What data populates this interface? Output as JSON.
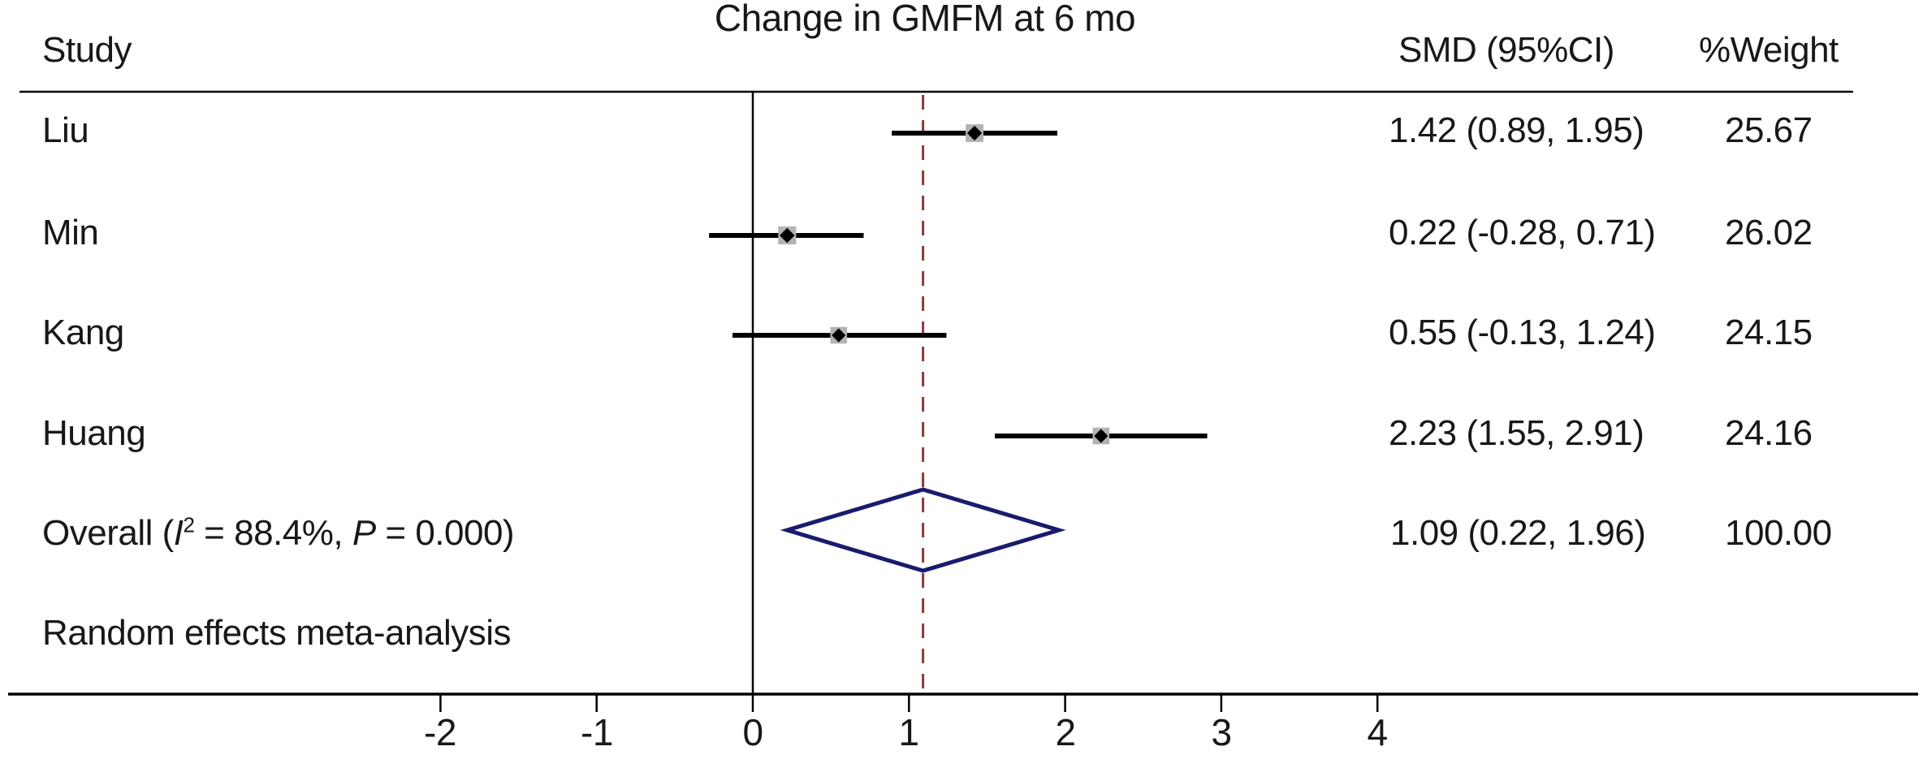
{
  "title": "Change in GMFM at 6 mo",
  "header": {
    "study": "Study",
    "smd_ci": "SMD (95%CI)",
    "weight": "%Weight"
  },
  "footnote": "Random effects meta-analysis",
  "colors": {
    "text": "#1a1717",
    "line": "#000000",
    "marker_bg": "#b3b3b3",
    "point": "#000000",
    "diamond": "#1b1b6e",
    "dashed": "#8b3a3a"
  },
  "chart_data": {
    "type": "forest",
    "title": "Change in GMFM at 6 mo",
    "x_ticks": [
      -2,
      -1,
      0,
      1,
      2,
      3,
      4
    ],
    "xlim": [
      -2.8,
      4.6
    ],
    "zero_line_x": 0,
    "overall_line_x": 1.09,
    "grid": "off",
    "studies": [
      {
        "name": "Liu",
        "smd": 1.42,
        "ci_low": 0.89,
        "ci_high": 1.95,
        "weight": 25.67,
        "smd_label": "1.42 (0.89, 1.95)",
        "weight_label": "25.67"
      },
      {
        "name": "Min",
        "smd": 0.22,
        "ci_low": -0.28,
        "ci_high": 0.71,
        "weight": 26.02,
        "smd_label": "0.22 (-0.28, 0.71)",
        "weight_label": "26.02"
      },
      {
        "name": "Kang",
        "smd": 0.55,
        "ci_low": -0.13,
        "ci_high": 1.24,
        "weight": 24.15,
        "smd_label": "0.55 (-0.13, 1.24)",
        "weight_label": "24.15"
      },
      {
        "name": "Huang",
        "smd": 2.23,
        "ci_low": 1.55,
        "ci_high": 2.91,
        "weight": 24.16,
        "smd_label": "2.23 (1.55, 2.91)",
        "weight_label": "24.16"
      }
    ],
    "overall": {
      "smd": 1.09,
      "ci_low": 0.22,
      "ci_high": 1.96,
      "weight": 100.0,
      "smd_label": "1.09 (0.22, 1.96)",
      "weight_label": "100.00",
      "i_squared": "88.4%",
      "p_value": "0.000",
      "label_parts": {
        "prefix": "Overall (",
        "stat_base": "I",
        "stat_sup": "2",
        "mid": " = 88.4%, ",
        "p": "P",
        "suffix": " = 0.000)"
      }
    },
    "model": "Random effects meta-analysis"
  }
}
